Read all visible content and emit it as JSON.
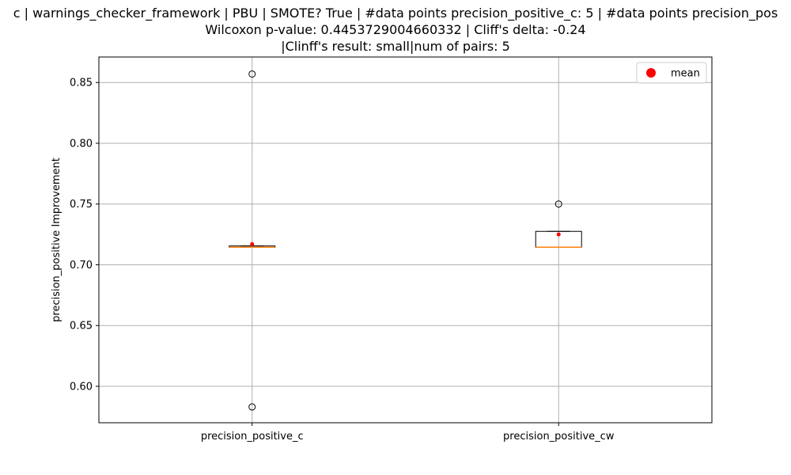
{
  "chart_data": {
    "type": "box",
    "title_lines": [
      "c | warnings_checker_framework | PBU | SMOTE? True | #data points precision_positive_c: 5 | #data points precision_pos",
      "Wilcoxon p-value: 0.4453729004660332 | Cliff's delta: -0.24",
      "|Clinff's result: small|num of pairs: 5"
    ],
    "xlabel": "",
    "ylabel": "precision_positive Improvement",
    "ylim": [
      0.57,
      0.871
    ],
    "yticks": [
      0.6,
      0.65,
      0.7,
      0.75,
      0.8,
      0.85
    ],
    "ytick_labels": [
      "0.60",
      "0.65",
      "0.70",
      "0.75",
      "0.80",
      "0.85"
    ],
    "grid": true,
    "legend": {
      "position": "upper-right",
      "entries": [
        {
          "label": "mean",
          "color": "#ff0000",
          "marker": "circle"
        }
      ]
    },
    "categories": [
      "precision_positive_c",
      "precision_positive_cw"
    ],
    "boxes": [
      {
        "name": "precision_positive_c",
        "q1": 0.7145,
        "median": 0.7145,
        "q3": 0.7155,
        "whisker_low": 0.7145,
        "whisker_high": 0.7155,
        "mean": 0.717,
        "fliers": [
          0.857,
          0.583
        ]
      },
      {
        "name": "precision_positive_cw",
        "q1": 0.7145,
        "median": 0.7145,
        "q3": 0.7275,
        "whisker_low": 0.7145,
        "whisker_high": 0.7275,
        "mean": 0.725,
        "fliers": [
          0.75
        ]
      }
    ],
    "colors": {
      "median": "#ff7f0e",
      "mean": "#ff0000",
      "box": "#000000",
      "grid": "#b0b0b0"
    }
  }
}
